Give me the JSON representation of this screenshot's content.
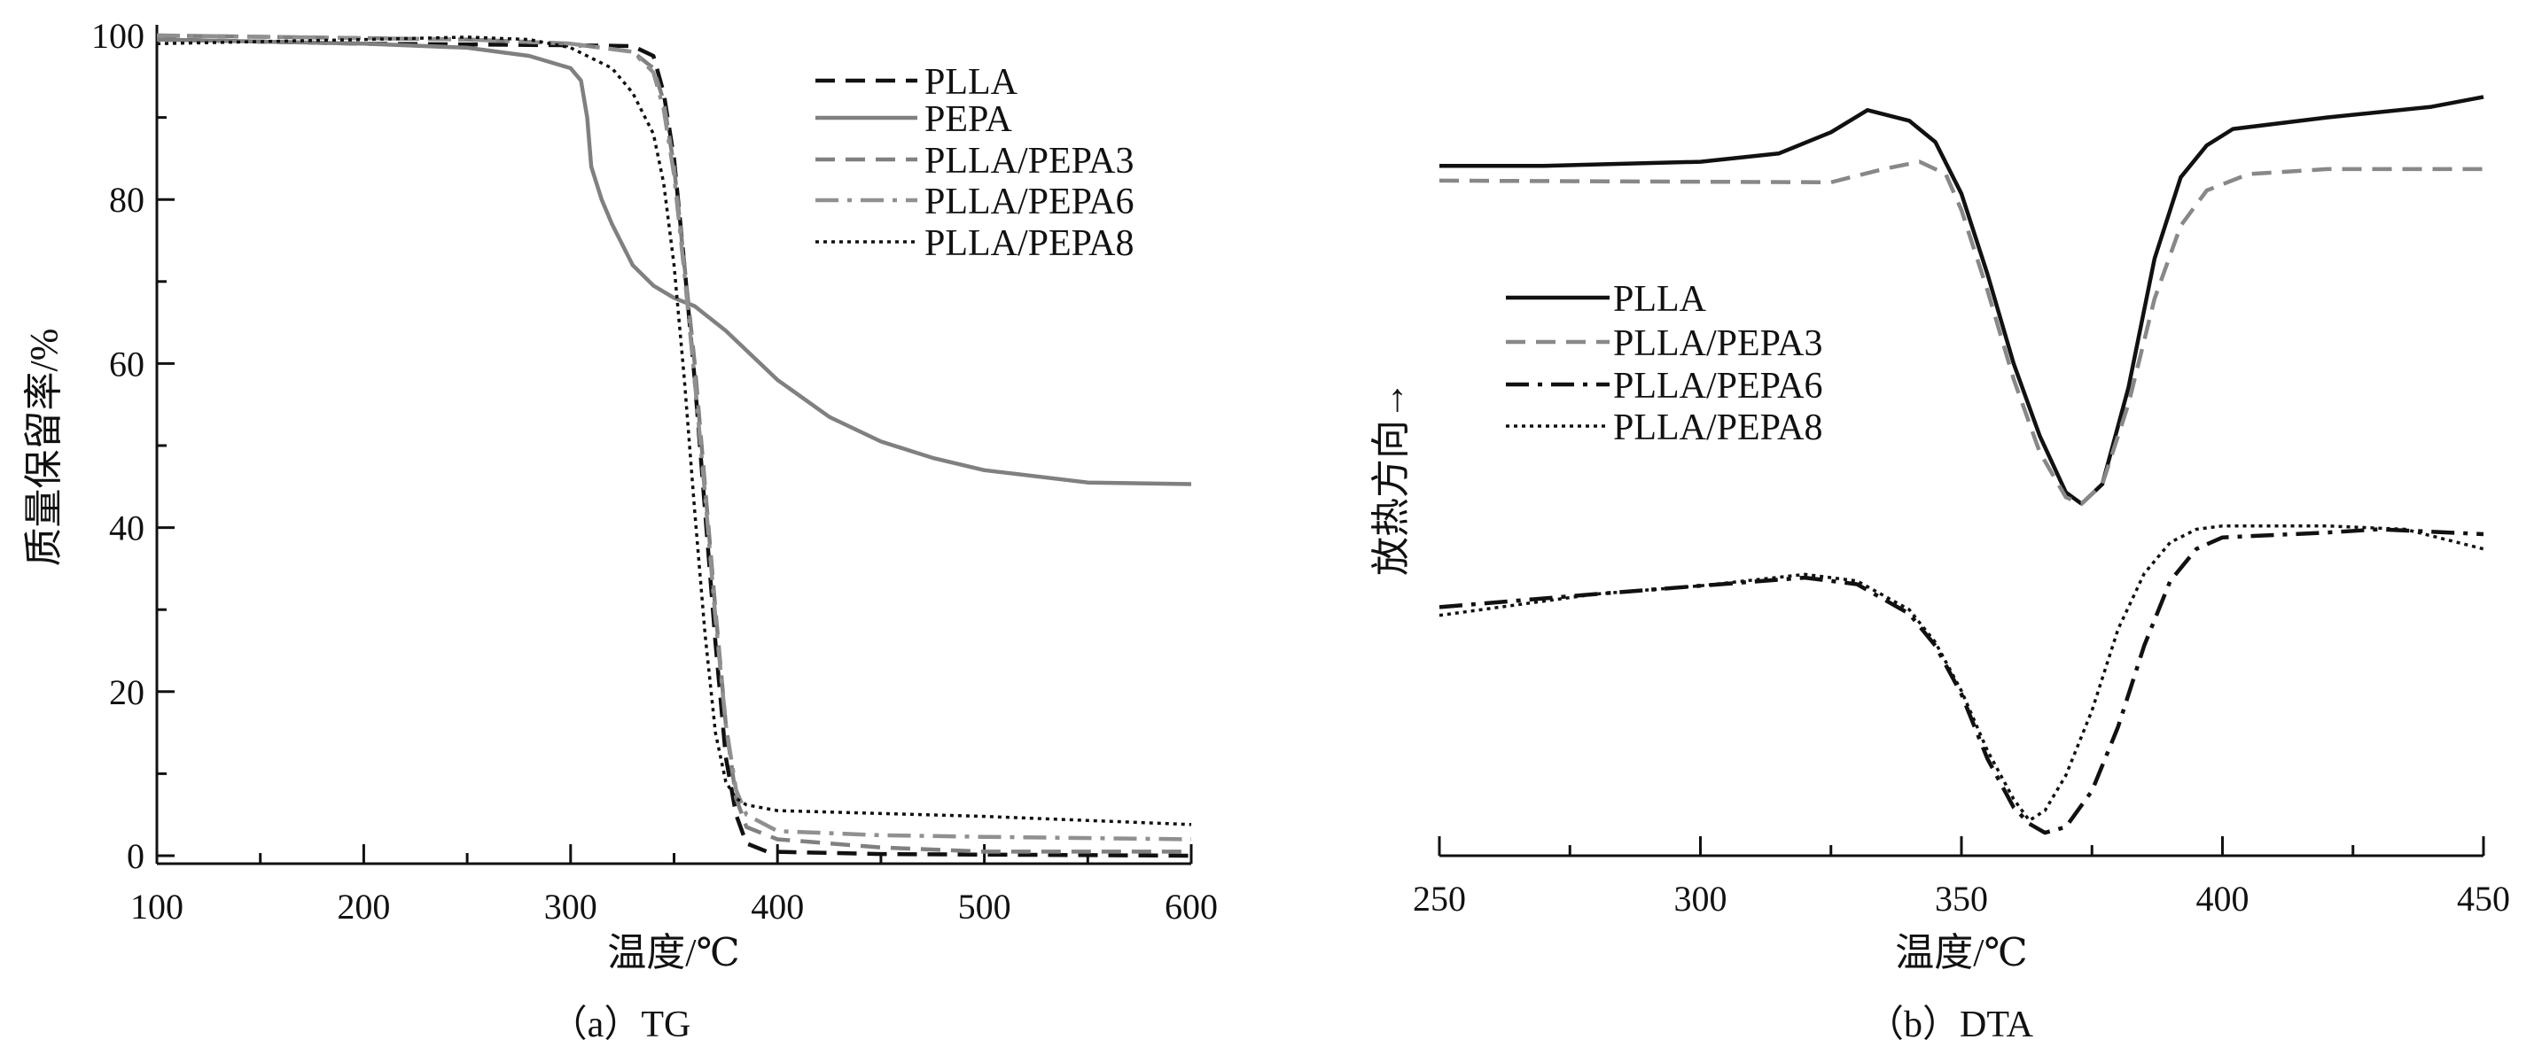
{
  "chart_data": [
    {
      "id": "tg",
      "type": "line",
      "title": "",
      "caption": "（a）TG",
      "xlabel": "温度/℃",
      "ylabel": "质量保留率/%",
      "xlim": [
        100,
        600
      ],
      "ylim": [
        0,
        100
      ],
      "xticks": [
        100,
        200,
        300,
        400,
        500,
        600
      ],
      "yticks": [
        0,
        20,
        40,
        60,
        80,
        100
      ],
      "grid": false,
      "legend_position": "top-right",
      "series": [
        {
          "name": "PLLA",
          "color": "#111111",
          "dash": "dash",
          "x": [
            100,
            200,
            300,
            330,
            340,
            345,
            350,
            355,
            360,
            365,
            370,
            375,
            380,
            385,
            395,
            450,
            600
          ],
          "y": [
            99.5,
            99,
            98.8,
            98.7,
            97.5,
            93,
            85,
            72,
            58,
            42,
            26,
            12,
            5,
            1.5,
            0.5,
            0.2,
            0
          ]
        },
        {
          "name": "PEPA",
          "color": "#808080",
          "dash": "solid",
          "x": [
            100,
            200,
            250,
            280,
            300,
            305,
            308,
            310,
            315,
            320,
            330,
            340,
            350,
            360,
            375,
            400,
            425,
            450,
            475,
            500,
            550,
            600
          ],
          "y": [
            99.5,
            99,
            98.5,
            97.5,
            96,
            94.5,
            90,
            84,
            80,
            77,
            72,
            69.5,
            68,
            67,
            64,
            58,
            53.5,
            50.5,
            48.5,
            47,
            45.5,
            45.3
          ]
        },
        {
          "name": "PLLA/PEPA3",
          "color": "#808080",
          "dash": "dash",
          "x": [
            100,
            250,
            300,
            330,
            340,
            345,
            350,
            355,
            360,
            365,
            370,
            375,
            380,
            385,
            400,
            450,
            500,
            600
          ],
          "y": [
            100,
            99.5,
            99,
            98,
            96,
            92,
            84,
            72,
            60,
            45,
            30,
            16,
            7,
            3.5,
            2,
            1,
            0.5,
            0.5
          ]
        },
        {
          "name": "PLLA/PEPA6",
          "color": "#909090",
          "dash": "dashdot",
          "x": [
            100,
            250,
            300,
            330,
            340,
            345,
            350,
            355,
            360,
            365,
            370,
            375,
            380,
            385,
            400,
            450,
            500,
            600
          ],
          "y": [
            100,
            99.5,
            99,
            98,
            95.5,
            91,
            83,
            71,
            58,
            44,
            29,
            16,
            8,
            5,
            3,
            2.5,
            2.3,
            2
          ]
        },
        {
          "name": "PLLA/PEPA8",
          "color": "#111111",
          "dash": "dot",
          "x": [
            100,
            200,
            250,
            280,
            300,
            320,
            330,
            340,
            345,
            350,
            355,
            360,
            365,
            370,
            375,
            380,
            385,
            400,
            500,
            600
          ],
          "y": [
            99,
            99.5,
            99.8,
            99.5,
            98.5,
            96,
            93,
            88,
            82,
            72,
            58,
            42,
            27,
            15,
            9,
            7,
            6.2,
            5.5,
            4.8,
            3.8
          ]
        }
      ]
    },
    {
      "id": "dta",
      "type": "line",
      "title": "",
      "caption": "（b）DTA",
      "xlabel": "温度/℃",
      "ylabel": "放热方向→",
      "xlim": [
        250,
        450
      ],
      "ylim": [
        0,
        100
      ],
      "y_units": "arbitrary",
      "xticks": [
        250,
        300,
        350,
        400,
        450
      ],
      "yticks": [],
      "grid": false,
      "legend_position": "center-left",
      "series": [
        {
          "name": "PLLA",
          "color": "#111111",
          "dash": "solid",
          "x": [
            250,
            270,
            300,
            315,
            325,
            332,
            340,
            345,
            350,
            355,
            360,
            365,
            370,
            373,
            377,
            382,
            387,
            392,
            397,
            402,
            420,
            440,
            450
          ],
          "y": [
            84.1,
            84.1,
            84.6,
            85.6,
            88.2,
            90.9,
            89.6,
            87.0,
            80.7,
            70.9,
            60.0,
            51.2,
            44.3,
            42.9,
            45.3,
            57.1,
            72.8,
            82.7,
            86.6,
            88.6,
            90.0,
            91.3,
            92.5
          ]
        },
        {
          "name": "PLLA/PEPA3",
          "color": "#888888",
          "dash": "dash",
          "x": [
            250,
            325,
            335,
            342,
            347,
            350,
            355,
            360,
            365,
            370,
            373,
            377,
            382,
            387,
            392,
            397,
            405,
            420,
            450
          ],
          "y": [
            82.3,
            82.1,
            83.7,
            84.6,
            83.1,
            78.7,
            68.9,
            58.1,
            49.2,
            43.7,
            42.9,
            45.3,
            55.1,
            67.9,
            76.8,
            81.1,
            83.1,
            83.7,
            83.7
          ]
        },
        {
          "name": "PLLA/PEPA6",
          "color": "#111111",
          "dash": "dashdot",
          "x": [
            250,
            280,
            300,
            320,
            330,
            340,
            345,
            350,
            355,
            360,
            363,
            366,
            370,
            375,
            380,
            385,
            390,
            395,
            400,
            420,
            430,
            450
          ],
          "y": [
            30.3,
            31.9,
            32.9,
            33.9,
            33.1,
            29.5,
            25.6,
            19.7,
            11.8,
            5.9,
            3.9,
            2.8,
            3.5,
            7.9,
            15.7,
            25.6,
            33.5,
            37.4,
            38.8,
            39.4,
            39.8,
            39.2
          ]
        },
        {
          "name": "PLLA/PEPA8",
          "color": "#111111",
          "dash": "dot",
          "x": [
            250,
            280,
            300,
            320,
            330,
            340,
            345,
            350,
            355,
            360,
            363,
            366,
            370,
            375,
            380,
            385,
            390,
            395,
            400,
            420,
            435,
            450
          ],
          "y": [
            29.3,
            31.9,
            32.9,
            34.3,
            33.5,
            30.0,
            26.0,
            20.1,
            12.8,
            6.9,
            4.3,
            5.5,
            9.8,
            17.7,
            27.6,
            34.4,
            38.2,
            39.8,
            40.2,
            40.2,
            39.8,
            37.4
          ]
        }
      ]
    }
  ]
}
